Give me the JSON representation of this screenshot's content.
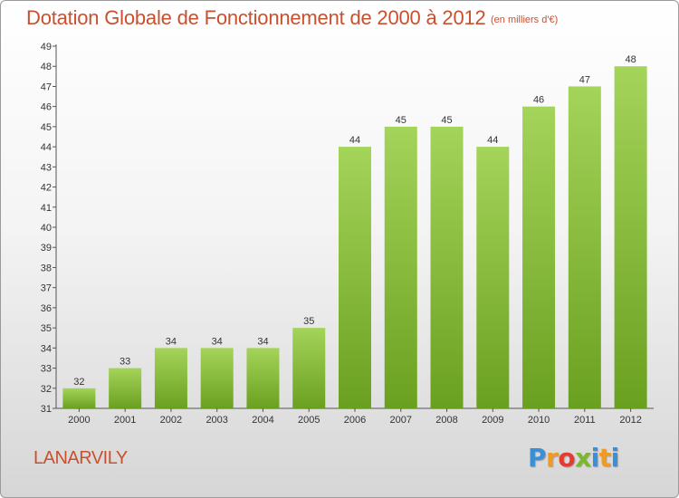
{
  "header": {
    "title": "Dotation Globale de Fonctionnement de 2000 à 2012",
    "unit": "(en milliers d'€)"
  },
  "footer": {
    "commune": "LANARVILY",
    "logo_letters": [
      "P",
      "r",
      "o",
      "x",
      "i",
      "t",
      "i"
    ],
    "logo_colors": [
      "#3a8fd6",
      "#f29a1f",
      "#e63c2f",
      "#7cb82f",
      "#3a8fd6",
      "#f29a1f",
      "#3a8fd6"
    ]
  },
  "chart_data": {
    "type": "bar",
    "title": "Dotation Globale de Fonctionnement de 2000 à 2012",
    "categories": [
      "2000",
      "2001",
      "2002",
      "2003",
      "2004",
      "2005",
      "2006",
      "2007",
      "2008",
      "2009",
      "2010",
      "2011",
      "2012"
    ],
    "values": [
      32,
      33,
      34,
      34,
      34,
      35,
      44,
      45,
      45,
      44,
      46,
      47,
      48
    ],
    "ylim": [
      31,
      49
    ],
    "yticks": [
      31,
      32,
      33,
      34,
      35,
      36,
      37,
      38,
      39,
      40,
      41,
      42,
      43,
      44,
      45,
      46,
      47,
      48,
      49
    ],
    "grid": false,
    "bar_color_top": "#a4d45a",
    "bar_color_bottom": "#6aa020"
  }
}
